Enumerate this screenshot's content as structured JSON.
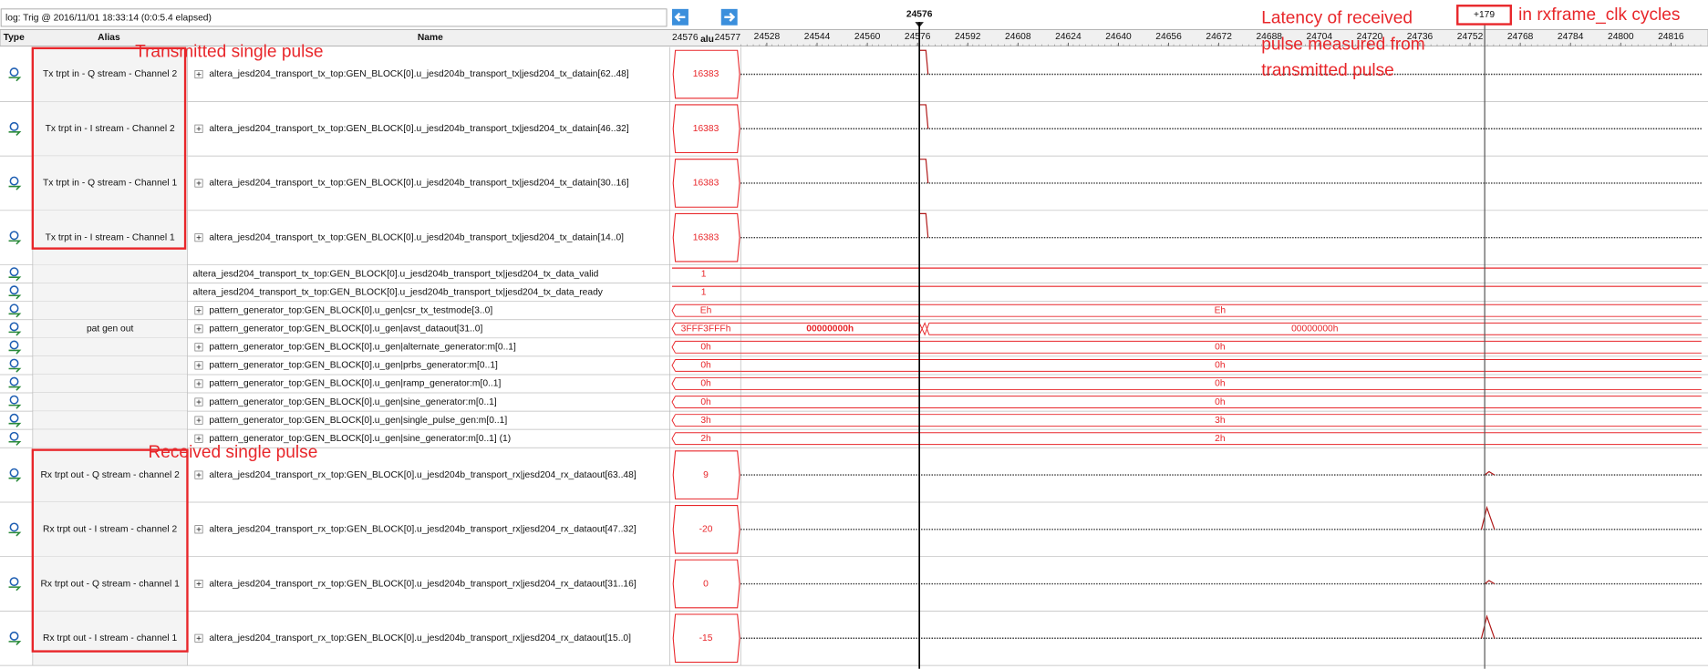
{
  "header": {
    "log": "log: Trig @ 2016/11/01 18:33:14 (0:0:5.4 elapsed)",
    "cursor": "24576",
    "latency": "+179"
  },
  "columns": {
    "type": "Type",
    "alias": "Alias",
    "name": "Name",
    "value_start": "24576",
    "value_mid": "alu",
    "value_end": "24577"
  },
  "timeline_ticks": [
    24528,
    24544,
    24560,
    24576,
    24592,
    24608,
    24624,
    24640,
    24656,
    24672,
    24688,
    24704,
    24720,
    24736,
    24752,
    24768,
    24784,
    24800,
    24816
  ],
  "rows": [
    {
      "alias": "Tx trpt in - Q stream - Channel 2",
      "name": "altera_jesd204_transport_tx_top:GEN_BLOCK[0].u_jesd204b_transport_tx|jesd204_tx_datain[62..48]",
      "value": "16383"
    },
    {
      "alias": "Tx trpt in - I stream - Channel 2",
      "name": "altera_jesd204_transport_tx_top:GEN_BLOCK[0].u_jesd204b_transport_tx|jesd204_tx_datain[46..32]",
      "value": "16383"
    },
    {
      "alias": "Tx trpt in - Q stream - Channel 1",
      "name": "altera_jesd204_transport_tx_top:GEN_BLOCK[0].u_jesd204b_transport_tx|jesd204_tx_datain[30..16]",
      "value": "16383"
    },
    {
      "alias": "Tx trpt in - I stream - Channel 1",
      "name": "altera_jesd204_transport_tx_top:GEN_BLOCK[0].u_jesd204b_transport_tx|jesd204_tx_datain[14..0]",
      "value": "16383"
    },
    {
      "name": "altera_jesd204_transport_tx_top:GEN_BLOCK[0].u_jesd204b_transport_tx|jesd204_tx_data_valid",
      "value": "1"
    },
    {
      "name": "altera_jesd204_transport_tx_top:GEN_BLOCK[0].u_jesd204b_transport_tx|jesd204_tx_data_ready",
      "value": "1"
    },
    {
      "name": "pattern_generator_top:GEN_BLOCK[0].u_gen|csr_tx_testmode[3..0]",
      "value": "Eh"
    },
    {
      "alias": "pat gen out",
      "name": "pattern_generator_top:GEN_BLOCK[0].u_gen|avst_dataout[31..0]",
      "value": "3FFF3FFFh",
      "wave_labels": [
        "00000000h",
        "00000000h"
      ]
    },
    {
      "name": "pattern_generator_top:GEN_BLOCK[0].u_gen|alternate_generator:m[0..1]",
      "value": "0h"
    },
    {
      "name": "pattern_generator_top:GEN_BLOCK[0].u_gen|prbs_generator:m[0..1]",
      "value": "0h"
    },
    {
      "name": "pattern_generator_top:GEN_BLOCK[0].u_gen|ramp_generator:m[0..1]",
      "value": "0h"
    },
    {
      "name": "pattern_generator_top:GEN_BLOCK[0].u_gen|sine_generator:m[0..1]",
      "value": "0h"
    },
    {
      "name": "pattern_generator_top:GEN_BLOCK[0].u_gen|single_pulse_gen:m[0..1]",
      "value": "3h"
    },
    {
      "name": "pattern_generator_top:GEN_BLOCK[0].u_gen|sine_generator:m[0..1] (1)",
      "value": "2h"
    },
    {
      "alias": "Rx trpt out - Q stream - channel 2",
      "name": "altera_jesd204_transport_rx_top:GEN_BLOCK[0].u_jesd204b_transport_rx|jesd204_rx_dataout[63..48]",
      "value": "9"
    },
    {
      "alias": "Rx trpt out - I stream - channel 2",
      "name": "altera_jesd204_transport_rx_top:GEN_BLOCK[0].u_jesd204b_transport_rx|jesd204_rx_dataout[47..32]",
      "value": "-20"
    },
    {
      "alias": "Rx trpt out - Q stream - channel 1",
      "name": "altera_jesd204_transport_rx_top:GEN_BLOCK[0].u_jesd204b_transport_rx|jesd204_rx_dataout[31..16]",
      "value": "0"
    },
    {
      "alias": "Rx trpt out - I stream - channel 1",
      "name": "altera_jesd204_transport_rx_top:GEN_BLOCK[0].u_jesd204b_transport_rx|jesd204_rx_dataout[15..0]",
      "value": "-15"
    }
  ],
  "annotations": {
    "transmitted": "Transmitted single pulse",
    "received": "Received single pulse",
    "latency_lines": [
      "Latency of received",
      "pulse measured from",
      "transmitted pulse"
    ],
    "units": "in rxframe_clk cycles"
  }
}
